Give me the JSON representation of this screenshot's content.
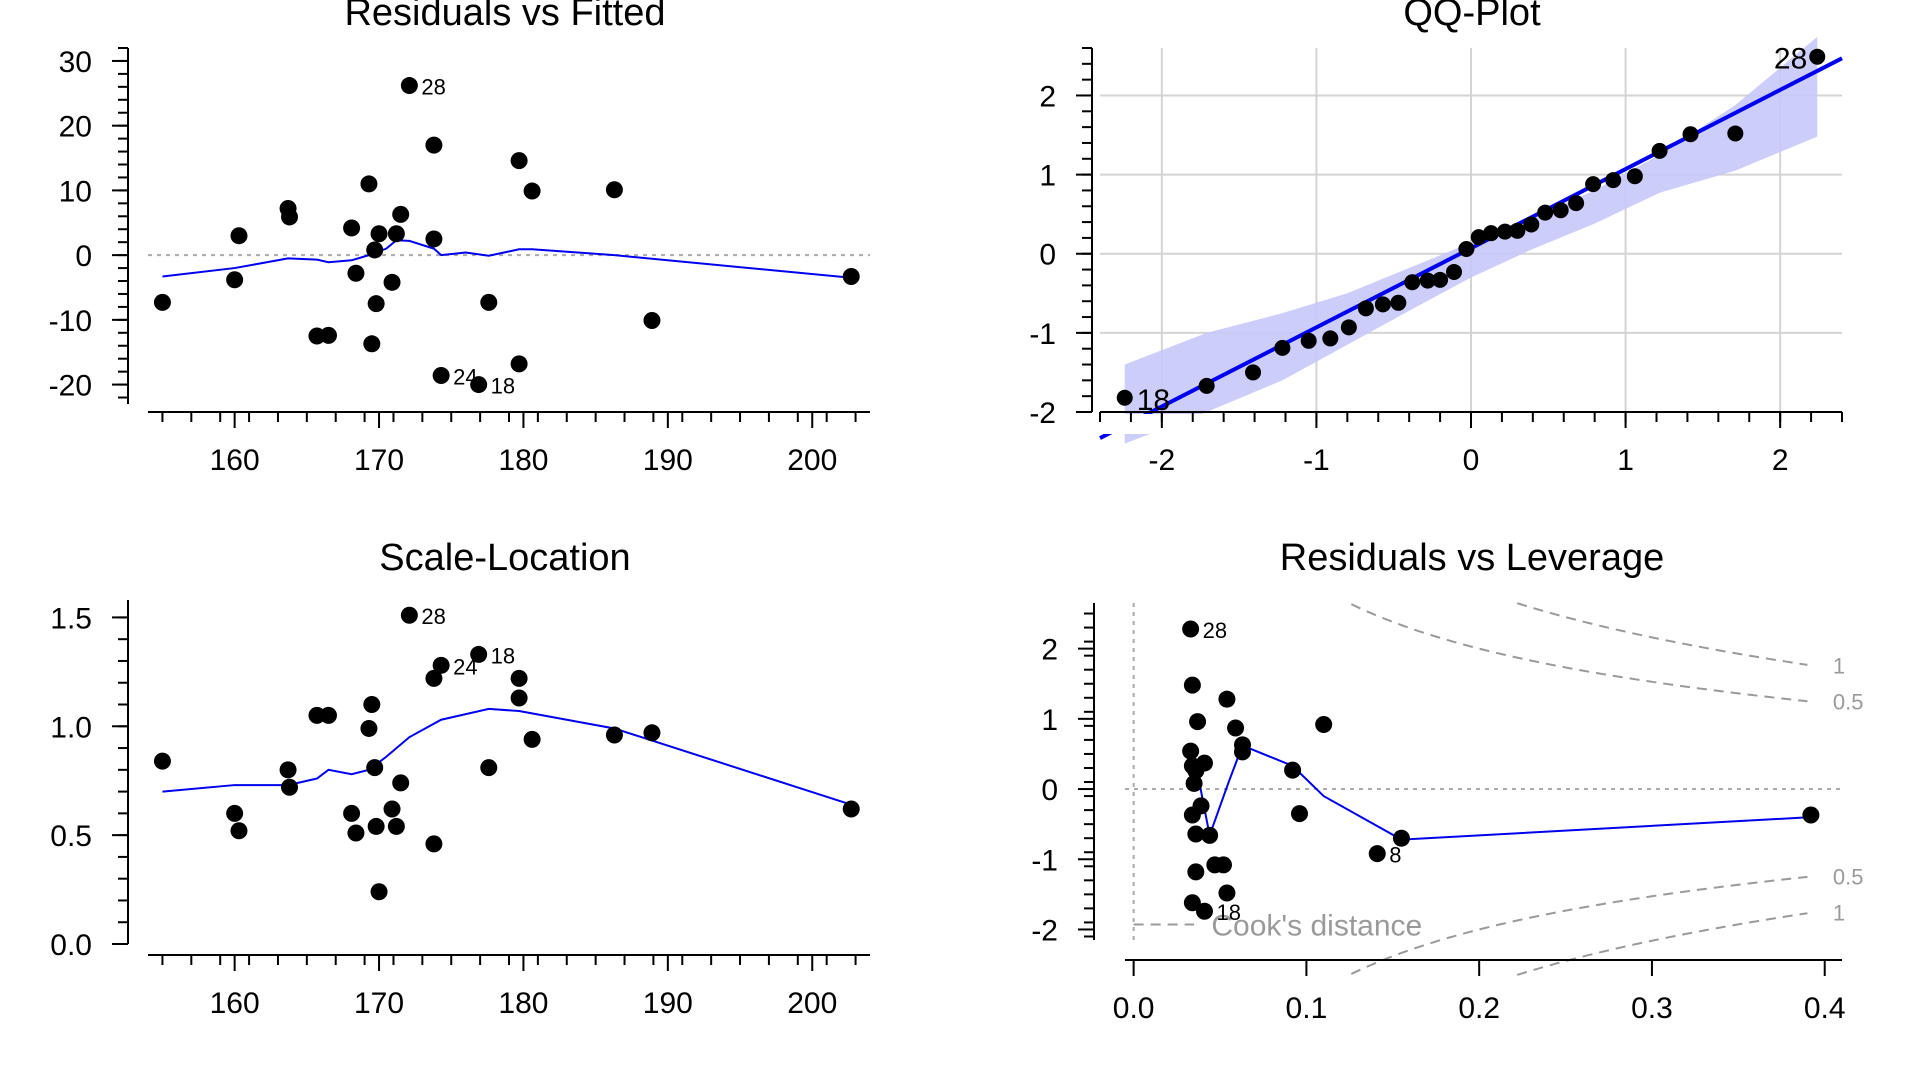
{
  "colors": {
    "points": "#000000",
    "smoother": "#0000ee",
    "qq_line": "#0000ee",
    "qq_band": "#c8c8f8",
    "grid": "#d4d4d4",
    "reference": "#aaaaaa",
    "cooks": "#9a9a9a"
  },
  "chart_data": [
    {
      "id": "residuals_vs_fitted",
      "type": "scatter",
      "title": "Residuals vs Fitted",
      "xlabel": "",
      "ylabel": "",
      "xlim": [
        154,
        204
      ],
      "ylim": [
        -23,
        32
      ],
      "xticks": [
        160,
        170,
        180,
        190,
        200
      ],
      "yticks": [
        30,
        20,
        10,
        0,
        -10,
        -20
      ],
      "grid": false,
      "reference_line_y": 0,
      "points": [
        {
          "x": 155.0,
          "y": -7.3
        },
        {
          "x": 160.0,
          "y": -3.8
        },
        {
          "x": 160.3,
          "y": 3.0
        },
        {
          "x": 163.7,
          "y": 7.2
        },
        {
          "x": 163.8,
          "y": 5.9
        },
        {
          "x": 165.7,
          "y": -12.5
        },
        {
          "x": 166.5,
          "y": -12.4
        },
        {
          "x": 168.1,
          "y": 4.2
        },
        {
          "x": 168.4,
          "y": -2.8
        },
        {
          "x": 169.3,
          "y": 11.0
        },
        {
          "x": 169.5,
          "y": -13.7
        },
        {
          "x": 169.7,
          "y": 0.8
        },
        {
          "x": 169.8,
          "y": -7.5
        },
        {
          "x": 170.0,
          "y": 3.3
        },
        {
          "x": 170.9,
          "y": -4.2
        },
        {
          "x": 171.2,
          "y": 3.3
        },
        {
          "x": 171.5,
          "y": 6.3
        },
        {
          "x": 172.1,
          "y": 26.2,
          "label": "28"
        },
        {
          "x": 173.8,
          "y": 17.0
        },
        {
          "x": 173.8,
          "y": 2.5
        },
        {
          "x": 174.3,
          "y": -18.6,
          "label": "24"
        },
        {
          "x": 176.9,
          "y": -20.0,
          "label": "18"
        },
        {
          "x": 177.6,
          "y": -7.3
        },
        {
          "x": 179.7,
          "y": 14.6
        },
        {
          "x": 179.7,
          "y": -16.8
        },
        {
          "x": 180.6,
          "y": 9.9
        },
        {
          "x": 186.3,
          "y": 10.1
        },
        {
          "x": 188.9,
          "y": -10.1
        },
        {
          "x": 202.7,
          "y": -3.3
        }
      ],
      "smoother": {
        "x": [
          155,
          160,
          163.7,
          165.7,
          166.5,
          168.1,
          169.3,
          170.5,
          171.2,
          172.1,
          173.8,
          174.3,
          176.0,
          177.6,
          179.7,
          180.6,
          186.3,
          202.7
        ],
        "y": [
          -3.3,
          -2.0,
          -0.5,
          -0.7,
          -1.1,
          -0.8,
          0.0,
          1.0,
          2.3,
          2.2,
          1.0,
          0.0,
          0.4,
          -0.1,
          0.9,
          0.9,
          0.0,
          -3.5
        ]
      }
    },
    {
      "id": "qq_plot",
      "type": "scatter",
      "title": "QQ-Plot",
      "xlabel": "",
      "ylabel": "",
      "xlim": [
        -2.4,
        2.4
      ],
      "ylim": [
        -2.0,
        2.6
      ],
      "xticks": [
        -2,
        -1,
        0,
        1,
        2
      ],
      "yticks": [
        2,
        1,
        0,
        -1,
        -2
      ],
      "grid": true,
      "points": [
        {
          "x": -2.24,
          "y": -1.82,
          "label": "18"
        },
        {
          "x": -1.71,
          "y": -1.67
        },
        {
          "x": -1.41,
          "y": -1.5
        },
        {
          "x": -1.22,
          "y": -1.19
        },
        {
          "x": -1.05,
          "y": -1.1
        },
        {
          "x": -0.91,
          "y": -1.07
        },
        {
          "x": -0.79,
          "y": -0.93
        },
        {
          "x": -0.68,
          "y": -0.69
        },
        {
          "x": -0.57,
          "y": -0.64
        },
        {
          "x": -0.47,
          "y": -0.62
        },
        {
          "x": -0.38,
          "y": -0.36
        },
        {
          "x": -0.28,
          "y": -0.34
        },
        {
          "x": -0.2,
          "y": -0.33
        },
        {
          "x": -0.11,
          "y": -0.23
        },
        {
          "x": -0.03,
          "y": 0.06
        },
        {
          "x": 0.05,
          "y": 0.21
        },
        {
          "x": 0.13,
          "y": 0.26
        },
        {
          "x": 0.22,
          "y": 0.28
        },
        {
          "x": 0.3,
          "y": 0.29
        },
        {
          "x": 0.39,
          "y": 0.37
        },
        {
          "x": 0.48,
          "y": 0.52
        },
        {
          "x": 0.58,
          "y": 0.55
        },
        {
          "x": 0.68,
          "y": 0.64
        },
        {
          "x": 0.79,
          "y": 0.88
        },
        {
          "x": 0.92,
          "y": 0.93
        },
        {
          "x": 1.06,
          "y": 0.98
        },
        {
          "x": 1.22,
          "y": 1.3
        },
        {
          "x": 1.42,
          "y": 1.51
        },
        {
          "x": 1.71,
          "y": 1.52
        },
        {
          "x": 2.24,
          "y": 2.49,
          "label": "28"
        }
      ],
      "reference_line": {
        "x": [
          -2.4,
          2.4
        ],
        "y": [
          -2.33,
          2.47
        ]
      },
      "confidence_band": {
        "x": [
          -2.24,
          -1.71,
          -1.22,
          -0.8,
          -0.4,
          0,
          0.4,
          0.8,
          1.22,
          1.71,
          2.24
        ],
        "upper": [
          -1.4,
          -1.0,
          -0.75,
          -0.5,
          -0.18,
          0.14,
          0.46,
          0.8,
          1.25,
          1.88,
          2.74
        ],
        "lower": [
          -2.4,
          -2.0,
          -1.6,
          -1.15,
          -0.72,
          -0.3,
          0.06,
          0.38,
          0.77,
          1.05,
          1.48
        ]
      }
    },
    {
      "id": "scale_location",
      "type": "scatter",
      "title": "Scale-Location",
      "xlabel": "",
      "ylabel": "",
      "xlim": [
        154,
        204
      ],
      "ylim": [
        0.0,
        1.58
      ],
      "xticks": [
        160,
        170,
        180,
        190,
        200
      ],
      "yticks": [
        "1.5",
        "1.0",
        "0.5",
        "0.0"
      ],
      "grid": false,
      "points": [
        {
          "x": 155.0,
          "y": 0.84
        },
        {
          "x": 160.0,
          "y": 0.6
        },
        {
          "x": 160.3,
          "y": 0.52
        },
        {
          "x": 163.7,
          "y": 0.8
        },
        {
          "x": 163.8,
          "y": 0.72
        },
        {
          "x": 165.7,
          "y": 1.05
        },
        {
          "x": 166.5,
          "y": 1.05
        },
        {
          "x": 168.1,
          "y": 0.6
        },
        {
          "x": 168.4,
          "y": 0.51
        },
        {
          "x": 169.3,
          "y": 0.99
        },
        {
          "x": 169.5,
          "y": 1.1
        },
        {
          "x": 169.7,
          "y": 0.81
        },
        {
          "x": 169.8,
          "y": 0.54
        },
        {
          "x": 170.0,
          "y": 0.24
        },
        {
          "x": 170.9,
          "y": 0.62
        },
        {
          "x": 171.2,
          "y": 0.54
        },
        {
          "x": 171.5,
          "y": 0.74
        },
        {
          "x": 172.1,
          "y": 1.51,
          "label": "28"
        },
        {
          "x": 173.8,
          "y": 1.22
        },
        {
          "x": 173.8,
          "y": 0.46
        },
        {
          "x": 174.3,
          "y": 1.28,
          "label": "24"
        },
        {
          "x": 176.9,
          "y": 1.33,
          "label": "18"
        },
        {
          "x": 177.6,
          "y": 0.81
        },
        {
          "x": 179.7,
          "y": 1.22
        },
        {
          "x": 179.7,
          "y": 1.13
        },
        {
          "x": 180.6,
          "y": 0.94
        },
        {
          "x": 186.3,
          "y": 0.96
        },
        {
          "x": 188.9,
          "y": 0.97
        },
        {
          "x": 202.7,
          "y": 0.62
        }
      ],
      "smoother": {
        "x": [
          155,
          160,
          163.7,
          165.7,
          166.5,
          168.1,
          169.3,
          170.5,
          172.1,
          174.3,
          177.6,
          179.7,
          186.3,
          202.7
        ],
        "y": [
          0.7,
          0.73,
          0.73,
          0.76,
          0.8,
          0.78,
          0.8,
          0.86,
          0.95,
          1.03,
          1.08,
          1.07,
          0.99,
          0.64
        ]
      }
    },
    {
      "id": "residuals_vs_leverage",
      "type": "scatter",
      "title": "Residuals vs Leverage",
      "xlabel": "",
      "ylabel": "",
      "xlim": [
        -0.005,
        0.41
      ],
      "ylim": [
        -2.15,
        2.65
      ],
      "xticks": [
        "0.0",
        "0.1",
        "0.2",
        "0.3",
        "0.4"
      ],
      "yticks": [
        2,
        1,
        0,
        -1,
        -2
      ],
      "grid": false,
      "reference_line_y": 0,
      "reference_line_x": 0,
      "points": [
        {
          "x": 0.033,
          "y": 2.28,
          "label": "28"
        },
        {
          "x": 0.034,
          "y": 1.48
        },
        {
          "x": 0.037,
          "y": 0.96
        },
        {
          "x": 0.033,
          "y": 0.54
        },
        {
          "x": 0.034,
          "y": 0.33
        },
        {
          "x": 0.036,
          "y": 0.26
        },
        {
          "x": 0.041,
          "y": 0.37
        },
        {
          "x": 0.035,
          "y": 0.08
        },
        {
          "x": 0.039,
          "y": -0.24
        },
        {
          "x": 0.034,
          "y": -0.37
        },
        {
          "x": 0.036,
          "y": -0.64
        },
        {
          "x": 0.044,
          "y": -0.66
        },
        {
          "x": 0.036,
          "y": -1.18
        },
        {
          "x": 0.047,
          "y": -1.08
        },
        {
          "x": 0.052,
          "y": -1.08
        },
        {
          "x": 0.054,
          "y": -1.48
        },
        {
          "x": 0.034,
          "y": -1.62
        },
        {
          "x": 0.041,
          "y": -1.74,
          "label": "18"
        },
        {
          "x": 0.054,
          "y": 1.28
        },
        {
          "x": 0.059,
          "y": 0.87
        },
        {
          "x": 0.063,
          "y": 0.63
        },
        {
          "x": 0.063,
          "y": 0.53
        },
        {
          "x": 0.092,
          "y": 0.27
        },
        {
          "x": 0.096,
          "y": -0.35
        },
        {
          "x": 0.11,
          "y": 0.92
        },
        {
          "x": 0.141,
          "y": -0.92,
          "label": "8"
        },
        {
          "x": 0.155,
          "y": -0.7
        },
        {
          "x": 0.392,
          "y": -0.37
        }
      ],
      "smoother": {
        "x": [
          0.034,
          0.038,
          0.044,
          0.055,
          0.063,
          0.092,
          0.11,
          0.155,
          0.392
        ],
        "y": [
          0.3,
          0.1,
          -0.66,
          0.1,
          0.62,
          0.33,
          -0.1,
          -0.72,
          -0.4
        ]
      },
      "cooks_distance": {
        "legend": "Cook's distance",
        "contours": [
          {
            "label": "1",
            "level": 1
          },
          {
            "label": "0.5",
            "level": 0.5
          },
          {
            "label": "0.5",
            "level": -0.5
          },
          {
            "label": "1",
            "level": -1
          }
        ]
      }
    }
  ]
}
